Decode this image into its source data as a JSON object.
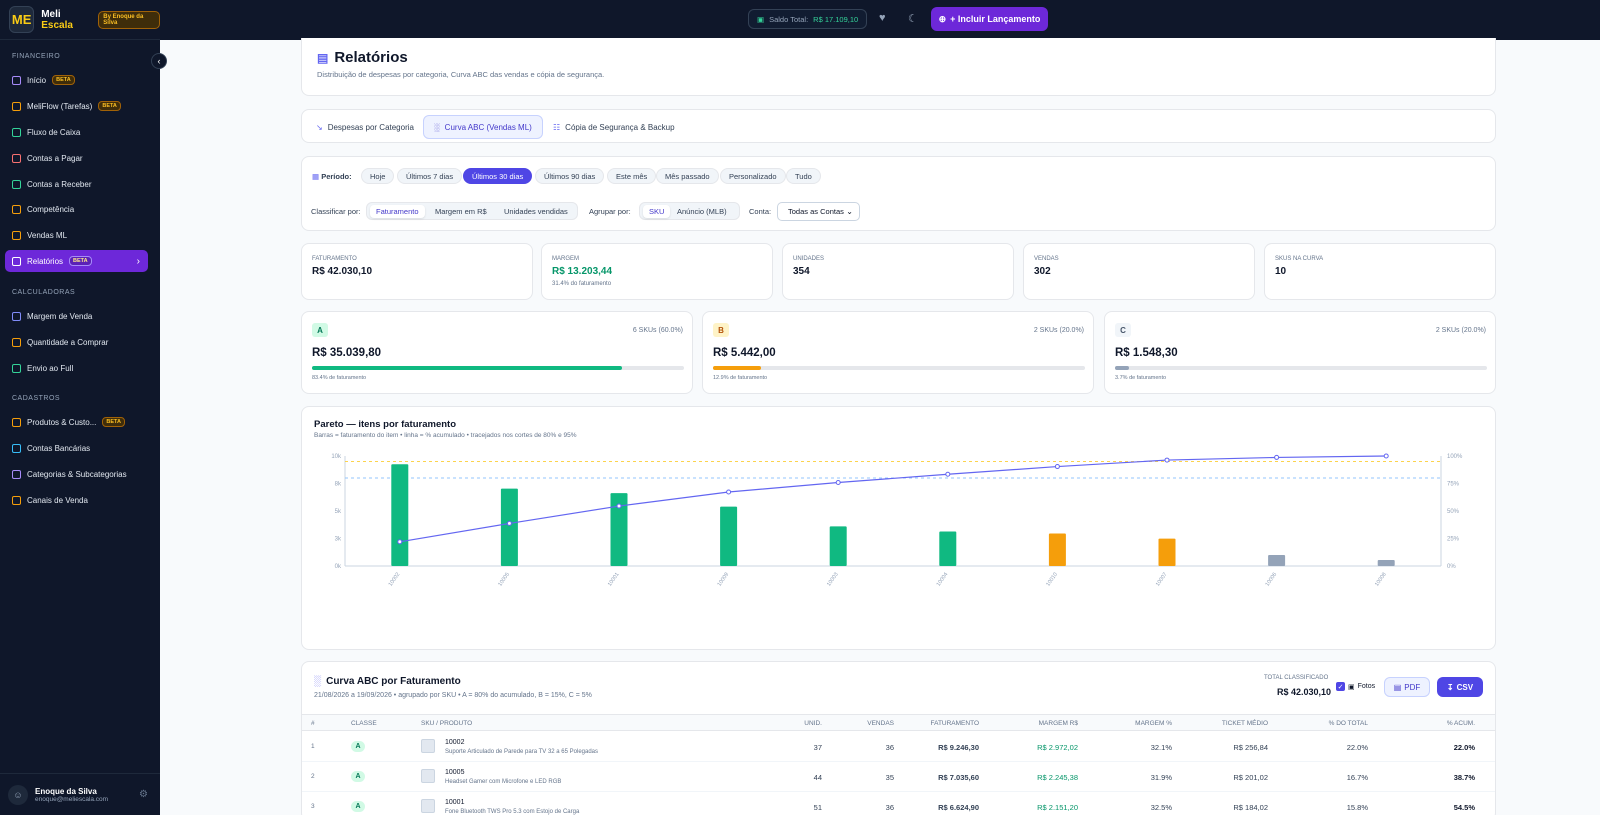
{
  "brand": {
    "name_1": "Meli",
    "name_2": "Escala",
    "by": "By Enoque da Silva",
    "logo": "ME"
  },
  "sidebar": {
    "sections": [
      "FINANCEIRO",
      "CALCULADORAS",
      "CADASTROS"
    ],
    "items": [
      {
        "label": "Início",
        "badge": "BETA",
        "icon": "grid-icon"
      },
      {
        "label": "MeliFlow (Tarefas)",
        "badge": "BETA",
        "icon": "board-icon"
      },
      {
        "label": "Fluxo de Caixa",
        "badge": "",
        "icon": "trend-icon"
      },
      {
        "label": "Contas a Pagar",
        "badge": "",
        "icon": "minus-circle-icon"
      },
      {
        "label": "Contas a Receber",
        "badge": "",
        "icon": "plus-circle-icon"
      },
      {
        "label": "Competência",
        "badge": "",
        "icon": "coins-icon"
      },
      {
        "label": "Vendas ML",
        "badge": "",
        "icon": "store-icon"
      },
      {
        "label": "Relatórios",
        "badge": "BETA",
        "icon": "document-icon"
      },
      {
        "label": "Margem de Venda",
        "badge": "",
        "icon": "calculator-icon"
      },
      {
        "label": "Quantidade a Comprar",
        "badge": "",
        "icon": "cart-icon"
      },
      {
        "label": "Envio ao Full",
        "badge": "",
        "icon": "truck-icon"
      },
      {
        "label": "Produtos & Custo...",
        "badge": "BETA",
        "icon": "box-icon"
      },
      {
        "label": "Contas Bancárias",
        "badge": "",
        "icon": "bank-icon"
      },
      {
        "label": "Categorias & Subcategorias",
        "badge": "",
        "icon": "tag-icon"
      },
      {
        "label": "Canais de Venda",
        "badge": "",
        "icon": "store-icon"
      }
    ],
    "user": {
      "name": "Enoque da Silva",
      "email": "enoque@meliescala.com"
    }
  },
  "topbar": {
    "saldo_label": "Saldo Total:",
    "saldo_value": "R$ 17.109,10",
    "cta": "+ Incluir Lançamento"
  },
  "page": {
    "title": "Relatórios",
    "subtitle": "Distribuição de despesas por categoria, Curva ABC das vendas e cópia de segurança.",
    "tabs": [
      "Despesas por Categoria",
      "Curva ABC (Vendas ML)",
      "Cópia de Segurança & Backup"
    ]
  },
  "filters": {
    "period_label": "Período:",
    "periods": [
      "Hoje",
      "Últimos 7 dias",
      "Últimos 30 dias",
      "Últimos 90 dias",
      "Este mês",
      "Mês passado",
      "Personalizado",
      "Tudo"
    ],
    "active_period": "Últimos 30 dias",
    "classify_label": "Classificar por:",
    "classify": [
      "Faturamento",
      "Margem em R$",
      "Unidades vendidas"
    ],
    "group_label": "Agrupar por:",
    "group": [
      "SKU",
      "Anúncio (MLB)"
    ],
    "account_label": "Conta:",
    "account_value": "Todas as Contas"
  },
  "kpis": [
    {
      "label": "FATURAMENTO",
      "value": "R$ 42.030,10",
      "sub": ""
    },
    {
      "label": "MARGEM",
      "value": "R$ 13.203,44",
      "sub": "31.4% do faturamento"
    },
    {
      "label": "UNIDADES",
      "value": "354",
      "sub": ""
    },
    {
      "label": "VENDAS",
      "value": "302",
      "sub": ""
    },
    {
      "label": "SKUS NA CURVA",
      "value": "10",
      "sub": ""
    }
  ],
  "classes": [
    {
      "class": "A",
      "skus": "6 SKUs (60.0%)",
      "value": "R$ 35.039,80",
      "pct": 83.4,
      "sub": "83.4% de faturamento",
      "color": "#10b981",
      "bg": "#d1fae5",
      "fg": "#047857"
    },
    {
      "class": "B",
      "skus": "2 SKUs (20.0%)",
      "value": "R$ 5.442,00",
      "pct": 12.9,
      "sub": "12.9% de faturamento",
      "color": "#f59e0b",
      "bg": "#fef3c7",
      "fg": "#b45309"
    },
    {
      "class": "C",
      "skus": "2 SKUs (20.0%)",
      "value": "R$ 1.548,30",
      "pct": 3.7,
      "sub": "3.7% de faturamento",
      "color": "#94a3b8",
      "bg": "#f1f5f9",
      "fg": "#475569"
    }
  ],
  "chart_data": {
    "type": "bar",
    "title": "Pareto — itens por faturamento",
    "subtitle": "Barras = faturamento do item • linha = % acumulado • tracejados nos cortes de 80% e 95%",
    "categories": [
      "10002",
      "10005",
      "10001",
      "10009",
      "10003",
      "10004",
      "10010",
      "10007",
      "10006",
      "10008"
    ],
    "series": [
      {
        "values": [
          9246.3,
          7035.6,
          6624.9,
          5400,
          3600,
          3133,
          2950,
          2492,
          1000,
          548.3
        ],
        "classes": [
          "A",
          "A",
          "A",
          "A",
          "A",
          "A",
          "B",
          "B",
          "C",
          "C"
        ]
      },
      {
        "values": [
          22.0,
          38.7,
          54.5,
          67.3,
          75.9,
          83.4,
          90.4,
          96.3,
          98.7,
          100
        ]
      }
    ],
    "y_ticks_left": [
      "0k",
      "3k",
      "5k",
      "8k",
      "10k"
    ],
    "y_ticks_right": [
      "0%",
      "25%",
      "50%",
      "75%",
      "100%"
    ],
    "ylim_left": [
      0,
      10000
    ],
    "ylim_right": [
      0,
      100
    ],
    "cutoffs": [
      80,
      95
    ],
    "colors": {
      "A": "#10b981",
      "B": "#f59e0b",
      "C": "#94a3b8",
      "line": "#6366f1",
      "cut80": "#93c5fd",
      "cut95": "#fcd34d"
    }
  },
  "table": {
    "title": "Curva ABC por Faturamento",
    "subtitle": "21/08/2026 a 19/09/2026 • agrupado por SKU • A = 80% do acumulado, B = 15%, C = 5%",
    "total_label": "TOTAL CLASSIFICADO",
    "total_value": "R$ 42.030,10",
    "photos_label": "Fotos",
    "pdf": "PDF",
    "csv": "CSV",
    "headers": [
      "#",
      "CLASSE",
      "SKU / PRODUTO",
      "UNID.",
      "VENDAS",
      "FATURAMENTO",
      "MARGEM R$",
      "MARGEM %",
      "TICKET MÉDIO",
      "% DO TOTAL",
      "% ACUM."
    ],
    "rows": [
      {
        "n": "1",
        "cls": "A",
        "sku": "10002",
        "name": "Suporte Articulado de Parede para TV 32 a 65 Polegadas",
        "unid": "37",
        "vendas": "36",
        "fat": "R$ 9.246,30",
        "marg": "R$ 2.972,02",
        "margp": "32.1%",
        "ticket": "R$ 256,84",
        "tot": "22.0%",
        "acum": "22.0%"
      },
      {
        "n": "2",
        "cls": "A",
        "sku": "10005",
        "name": "Headset Gamer com Microfone e LED RGB",
        "unid": "44",
        "vendas": "35",
        "fat": "R$ 7.035,60",
        "marg": "R$ 2.245,38",
        "margp": "31.9%",
        "ticket": "R$ 201,02",
        "tot": "16.7%",
        "acum": "38.7%"
      },
      {
        "n": "3",
        "cls": "A",
        "sku": "10001",
        "name": "Fone Bluetooth TWS Pro 5.3 com Estojo de Carga",
        "unid": "51",
        "vendas": "36",
        "fat": "R$ 6.624,90",
        "marg": "R$ 2.151,20",
        "margp": "32.5%",
        "ticket": "R$ 184,02",
        "tot": "15.8%",
        "acum": "54.5%"
      }
    ]
  }
}
